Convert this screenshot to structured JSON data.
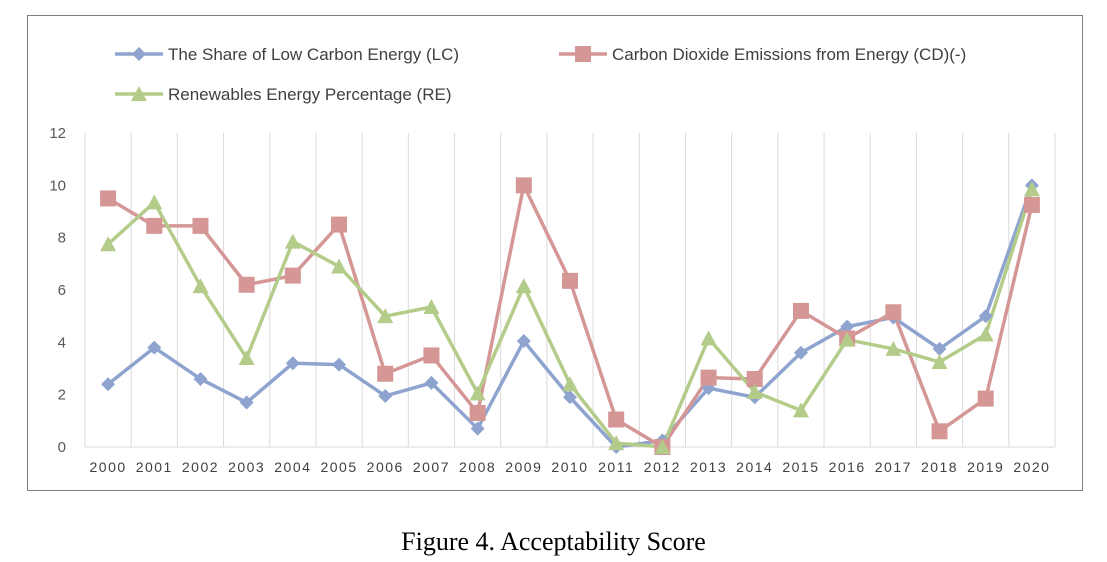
{
  "caption": "Figure 4. Acceptability Score",
  "chart_data": {
    "type": "line",
    "categories": [
      "2000",
      "2001",
      "2002",
      "2003",
      "2004",
      "2005",
      "2006",
      "2007",
      "2008",
      "2009",
      "2010",
      "2011",
      "2012",
      "2013",
      "2014",
      "2015",
      "2016",
      "2017",
      "2018",
      "2019",
      "2020"
    ],
    "ylim": [
      0,
      12
    ],
    "yticks": [
      0,
      2,
      4,
      6,
      8,
      10,
      12
    ],
    "grid": "vertical",
    "legend_position": "top",
    "series": [
      {
        "name": "The Share of Low Carbon Energy (LC)",
        "color": "#8EA4CF",
        "marker": "diamond",
        "values": [
          2.4,
          3.8,
          2.6,
          1.7,
          3.2,
          3.15,
          1.95,
          2.45,
          0.7,
          4.05,
          1.9,
          0.0,
          0.25,
          2.25,
          1.9,
          3.6,
          4.6,
          4.95,
          3.75,
          5.0,
          10.0
        ]
      },
      {
        "name": "Carbon Dioxide Emissions from Energy (CD)(-)",
        "color": "#D49796",
        "marker": "square",
        "values": [
          9.5,
          8.45,
          8.45,
          6.2,
          6.55,
          8.5,
          2.8,
          3.5,
          1.3,
          10.0,
          6.35,
          1.05,
          0.0,
          2.65,
          2.6,
          5.2,
          4.15,
          5.15,
          0.6,
          1.85,
          9.25
        ]
      },
      {
        "name": "Renewables Energy Percentage (RE)",
        "color": "#B4CC8A",
        "marker": "triangle",
        "values": [
          7.75,
          9.35,
          6.15,
          3.4,
          7.85,
          6.9,
          5.0,
          5.35,
          2.05,
          6.15,
          2.4,
          0.15,
          0.0,
          4.15,
          2.1,
          1.4,
          4.1,
          3.75,
          3.25,
          4.3,
          9.85
        ]
      }
    ]
  }
}
